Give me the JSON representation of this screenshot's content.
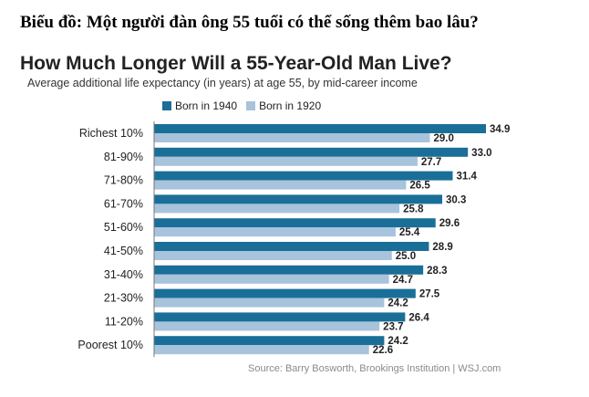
{
  "heading": "Biểu đồ: Một người đàn ông 55 tuổi có thể sống thêm bao lâu?",
  "chart_data": {
    "type": "bar",
    "orientation": "horizontal",
    "title": "How Much Longer Will a 55-Year-Old Man Live?",
    "subtitle": "Average additional life expectancy (in years) at age 55, by mid-career income",
    "categories": [
      "Richest 10%",
      "81-90%",
      "71-80%",
      "61-70%",
      "51-60%",
      "41-50%",
      "31-40%",
      "21-30%",
      "11-20%",
      "Poorest 10%"
    ],
    "series": [
      {
        "name": "Born in 1940",
        "color": "#1a6f98",
        "values": [
          34.9,
          33.0,
          31.4,
          30.3,
          29.6,
          28.9,
          28.3,
          27.5,
          26.4,
          24.2
        ],
        "labels": [
          "34.9",
          "33.0",
          "31.4",
          "30.3",
          "29.6",
          "28.9",
          "28.3",
          "27.5",
          "26.4",
          "24.2"
        ]
      },
      {
        "name": "Born in 1920",
        "color": "#a8c3dc",
        "values": [
          29.0,
          27.7,
          26.5,
          25.8,
          25.4,
          25.0,
          24.7,
          24.2,
          23.7,
          22.6
        ],
        "labels": [
          "29.0",
          "27.7",
          "26.5",
          "25.8",
          "25.4",
          "25.0",
          "24.7",
          "24.2",
          "23.7",
          "22.6"
        ]
      }
    ],
    "legend_position": "top-left",
    "grid": false,
    "source": "Source: Barry Bosworth, Brookings Institution  |  WSJ.com"
  }
}
